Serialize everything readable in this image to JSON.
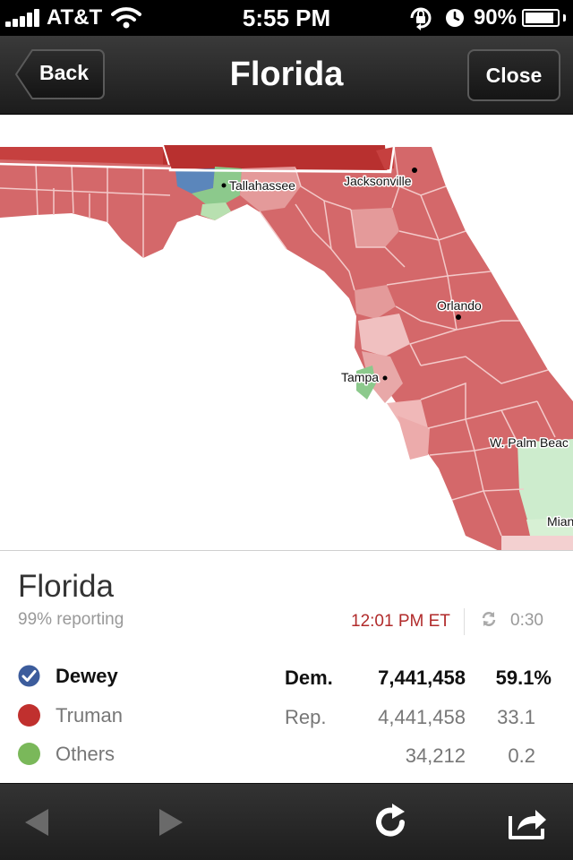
{
  "status_bar": {
    "carrier": "AT&T",
    "time": "5:55 PM",
    "battery": "90%",
    "battery_level": 0.9,
    "icons": [
      "signal-icon",
      "wifi-icon",
      "rotation-lock-icon",
      "alarm-icon",
      "battery-icon"
    ]
  },
  "nav": {
    "title": "Florida",
    "back_label": "Back",
    "close_label": "Close"
  },
  "map": {
    "cities": [
      "Tallahassee",
      "Jacksonville",
      "Orlando",
      "Tampa",
      "W. Palm Beac",
      "Mian"
    ],
    "colors": {
      "truman": "#d4686a",
      "truman_dark": "#c6403f",
      "truman_light": "#e49a9a",
      "truman_faint": "#f0c0c0",
      "dewey": "#5b86bb",
      "others": "#8cc98c",
      "others_light": "#cdeccd"
    }
  },
  "results": {
    "state": "Florida",
    "reporting": "99% reporting",
    "timestamp": "12:01 PM ET",
    "countdown": "0:30",
    "candidates": [
      {
        "name": "Dewey",
        "party": "Dem.",
        "votes": "7,441,458",
        "pct": "59.1%",
        "color": "#3c5c9c",
        "winner": true
      },
      {
        "name": "Truman",
        "party": "Rep.",
        "votes": "4,441,458",
        "pct": "33.1",
        "color": "#c0302e",
        "winner": false
      },
      {
        "name": "Others",
        "party": "",
        "votes": "34,212",
        "pct": "0.2",
        "color": "#7ab85a",
        "winner": false
      }
    ]
  },
  "toolbar": {
    "icons": [
      "back-arrow-icon",
      "forward-arrow-icon",
      "refresh-icon",
      "share-icon"
    ]
  }
}
